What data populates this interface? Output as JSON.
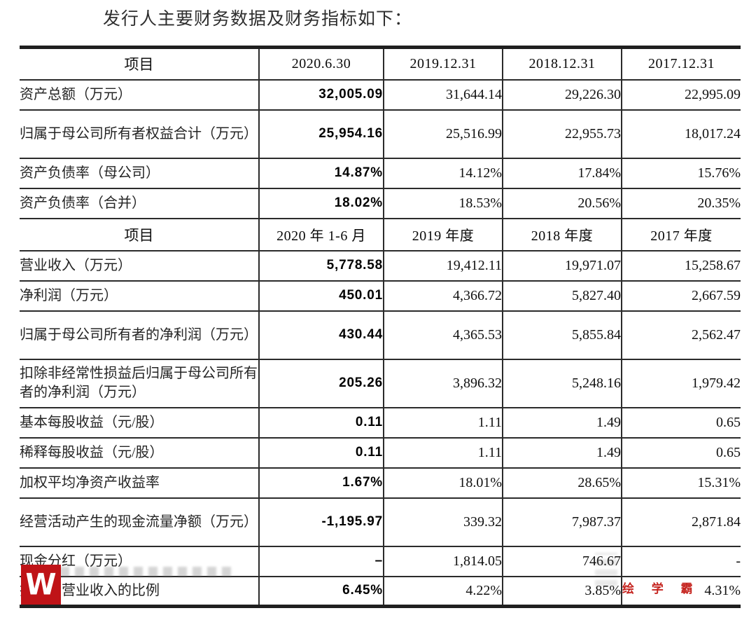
{
  "page": {
    "title": "发行人主要财务数据及财务指标如下："
  },
  "table": {
    "sections": [
      {
        "header": {
          "item": "项目",
          "cols": [
            "2020.6.30",
            "2019.12.31",
            "2018.12.31",
            "2017.12.31"
          ]
        },
        "rows": [
          {
            "label": "资产总额（万元）",
            "values": [
              "32,005.09",
              "31,644.14",
              "29,226.30",
              "22,995.09"
            ]
          },
          {
            "label": "归属于母公司所有者权益合计（万元）",
            "values": [
              "25,954.16",
              "25,516.99",
              "22,955.73",
              "18,017.24"
            ]
          },
          {
            "label": "资产负债率（母公司）",
            "values": [
              "14.87%",
              "14.12%",
              "17.84%",
              "15.76%"
            ]
          },
          {
            "label": "资产负债率（合并）",
            "values": [
              "18.02%",
              "18.53%",
              "20.56%",
              "20.35%"
            ]
          }
        ]
      },
      {
        "header": {
          "item": "项目",
          "cols": [
            "2020 年 1-6 月",
            "2019 年度",
            "2018 年度",
            "2017 年度"
          ]
        },
        "rows": [
          {
            "label": "营业收入（万元）",
            "values": [
              "5,778.58",
              "19,412.11",
              "19,971.07",
              "15,258.67"
            ]
          },
          {
            "label": "净利润（万元）",
            "values": [
              "450.01",
              "4,366.72",
              "5,827.40",
              "2,667.59"
            ]
          },
          {
            "label": "归属于母公司所有者的净利润（万元）",
            "values": [
              "430.44",
              "4,365.53",
              "5,855.84",
              "2,562.47"
            ]
          },
          {
            "label": "扣除非经常性损益后归属于母公司所有者的净利润（万元）",
            "values": [
              "205.26",
              "3,896.32",
              "5,248.16",
              "1,979.42"
            ]
          },
          {
            "label": "基本每股收益（元/股）",
            "values": [
              "0.11",
              "1.11",
              "1.49",
              "0.65"
            ]
          },
          {
            "label": "稀释每股收益（元/股）",
            "values": [
              "0.11",
              "1.11",
              "1.49",
              "0.65"
            ]
          },
          {
            "label": "加权平均净资产收益率",
            "values": [
              "1.67%",
              "18.01%",
              "28.65%",
              "15.31%"
            ]
          },
          {
            "label": "经营活动产生的现金流量净额（万元）",
            "values": [
              "-1,195.97",
              "339.32",
              "7,987.37",
              "2,871.84"
            ]
          },
          {
            "label": "现金分红（万元）",
            "values": [
              "–",
              "1,814.05",
              "746.67",
              "-"
            ]
          },
          {
            "label": "投入占营业收入的比例",
            "values": [
              "6.45%",
              "4.22%",
              "3.85%",
              "4.31%"
            ]
          }
        ]
      }
    ]
  },
  "watermarks": {
    "logo_letter": "W",
    "logo_color": "#bf1317",
    "brand_text": "绘 学 霸",
    "brand_color": "#c5241f"
  }
}
